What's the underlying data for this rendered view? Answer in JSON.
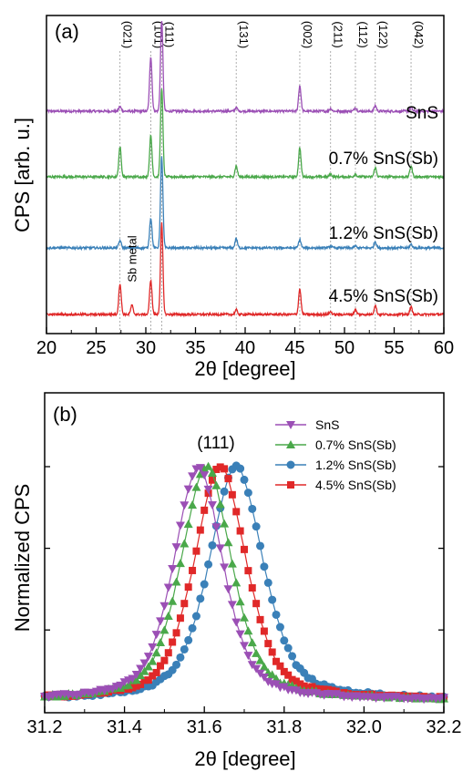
{
  "chart_data": [
    {
      "panel": "(a)",
      "type": "line",
      "xlabel": "2θ [degree]",
      "ylabel": "CPS [arb. u.]",
      "xlim": [
        20,
        60
      ],
      "xticks": [
        20,
        25,
        30,
        35,
        40,
        45,
        50,
        55,
        60
      ],
      "yticks_labeled": false,
      "grid": false,
      "legend": "inline labels",
      "reference_lines": [
        {
          "hkl": "(021)",
          "x": 27.4
        },
        {
          "hkl": "(101)",
          "x": 30.5
        },
        {
          "hkl": "(111)",
          "x": 31.6
        },
        {
          "hkl": "(131)",
          "x": 39.1
        },
        {
          "hkl": "(002)",
          "x": 45.5
        },
        {
          "hkl": "(211)",
          "x": 48.6
        },
        {
          "hkl": "(112)",
          "x": 51.1
        },
        {
          "hkl": "(122)",
          "x": 53.1
        },
        {
          "hkl": "(042)",
          "x": 56.7
        }
      ],
      "annotation": "Sb metal",
      "series": [
        {
          "name": "SnS",
          "color": "#9b4fb5",
          "peaks": [
            {
              "x": 27.4,
              "height": 0.05
            },
            {
              "x": 30.5,
              "height": 0.6
            },
            {
              "x": 31.6,
              "height": 1.0
            },
            {
              "x": 39.1,
              "height": 0.04
            },
            {
              "x": 45.5,
              "height": 0.28
            },
            {
              "x": 48.6,
              "height": 0.03
            },
            {
              "x": 51.1,
              "height": 0.04
            },
            {
              "x": 53.1,
              "height": 0.06
            },
            {
              "x": 56.7,
              "height": 0.04
            }
          ]
        },
        {
          "name": "0.7% SnS(Sb)",
          "color": "#4aa84a",
          "peaks": [
            {
              "x": 27.4,
              "height": 0.33
            },
            {
              "x": 30.5,
              "height": 0.45
            },
            {
              "x": 31.6,
              "height": 0.98
            },
            {
              "x": 39.1,
              "height": 0.12
            },
            {
              "x": 45.5,
              "height": 0.32
            },
            {
              "x": 48.6,
              "height": 0.03
            },
            {
              "x": 51.1,
              "height": 0.03
            },
            {
              "x": 53.1,
              "height": 0.1
            },
            {
              "x": 56.7,
              "height": 0.12
            }
          ]
        },
        {
          "name": "1.2% SnS(Sb)",
          "color": "#3a80b8",
          "peaks": [
            {
              "x": 27.4,
              "height": 0.08
            },
            {
              "x": 30.5,
              "height": 0.33
            },
            {
              "x": 31.6,
              "height": 1.0
            },
            {
              "x": 39.1,
              "height": 0.1
            },
            {
              "x": 45.5,
              "height": 0.09
            },
            {
              "x": 48.6,
              "height": 0.02
            },
            {
              "x": 51.1,
              "height": 0.02
            },
            {
              "x": 53.1,
              "height": 0.07
            },
            {
              "x": 56.7,
              "height": 0.04
            }
          ]
        },
        {
          "name": "4.5% SnS(Sb)",
          "color": "#e02828",
          "peaks": [
            {
              "x": 27.4,
              "height": 0.34
            },
            {
              "x": 28.6,
              "height": 0.1
            },
            {
              "x": 30.5,
              "height": 0.38
            },
            {
              "x": 31.6,
              "height": 1.0
            },
            {
              "x": 39.1,
              "height": 0.05
            },
            {
              "x": 45.5,
              "height": 0.28
            },
            {
              "x": 48.6,
              "height": 0.03
            },
            {
              "x": 51.1,
              "height": 0.05
            },
            {
              "x": 53.1,
              "height": 0.1
            },
            {
              "x": 56.7,
              "height": 0.08
            }
          ]
        }
      ]
    },
    {
      "panel": "(b)",
      "type": "line",
      "xlabel": "2θ [degree]",
      "ylabel": "Normalized CPS",
      "xlim": [
        31.2,
        32.2
      ],
      "ylim": [
        0,
        1.1
      ],
      "xticks": [
        31.2,
        31.4,
        31.6,
        31.8,
        32.0,
        32.2
      ],
      "yticks_labeled": false,
      "grid": false,
      "annotation": "(111)",
      "legend": "top-right",
      "series": [
        {
          "name": "SnS",
          "color": "#9b4fb5",
          "marker": "triangle-down",
          "center": 31.585,
          "fwhm": 0.145
        },
        {
          "name": "0.7% SnS(Sb)",
          "color": "#4aa84a",
          "marker": "triangle-up",
          "center": 31.605,
          "fwhm": 0.15
        },
        {
          "name": "1.2% SnS(Sb)",
          "color": "#3a80b8",
          "marker": "circle",
          "center": 31.68,
          "fwhm": 0.16
        },
        {
          "name": "4.5% SnS(Sb)",
          "color": "#e02828",
          "marker": "square",
          "center": 31.64,
          "fwhm": 0.155
        }
      ]
    }
  ]
}
